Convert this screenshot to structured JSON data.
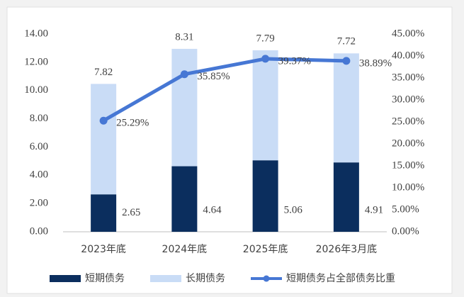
{
  "chart_data": {
    "type": "bar-line",
    "categories": [
      "2023年底",
      "2024年底",
      "2025年底",
      "2026年3月底"
    ],
    "series": [
      {
        "name": "短期债务",
        "color": "#0b2e5e",
        "values": [
          2.65,
          4.64,
          5.06,
          4.91
        ]
      },
      {
        "name": "长期债务",
        "color": "#c9dcf6",
        "values": [
          7.82,
          8.31,
          7.79,
          7.72
        ]
      },
      {
        "name": "短期债务占全部债务比重",
        "type": "line",
        "axis": "y2",
        "color": "#4677d4",
        "values": [
          25.29,
          35.85,
          39.37,
          38.89
        ],
        "value_labels": [
          "25.29%",
          "35.85%",
          "39.37%",
          "38.89%"
        ]
      }
    ],
    "ylim": [
      0,
      14
    ],
    "yticks": [
      {
        "value": 0,
        "label": "0.00"
      },
      {
        "value": 2,
        "label": "2.00"
      },
      {
        "value": 4,
        "label": "4.00"
      },
      {
        "value": 6,
        "label": "6.00"
      },
      {
        "value": 8,
        "label": "8.00"
      },
      {
        "value": 10,
        "label": "10.00"
      },
      {
        "value": 12,
        "label": "12.00"
      },
      {
        "value": 14,
        "label": "14.00"
      }
    ],
    "y2lim": [
      0,
      45
    ],
    "y2ticks": [
      {
        "value": 0,
        "label": "0.00%"
      },
      {
        "value": 5,
        "label": "5.00%"
      },
      {
        "value": 10,
        "label": "10.00%"
      },
      {
        "value": 15,
        "label": "15.00%"
      },
      {
        "value": 20,
        "label": "20.00%"
      },
      {
        "value": 25,
        "label": "25.00%"
      },
      {
        "value": 30,
        "label": "30.00%"
      },
      {
        "value": 35,
        "label": "35.00%"
      },
      {
        "value": 40,
        "label": "40.00%"
      },
      {
        "value": 45,
        "label": "45.00%"
      }
    ],
    "grid": false,
    "legend": "bottom"
  }
}
